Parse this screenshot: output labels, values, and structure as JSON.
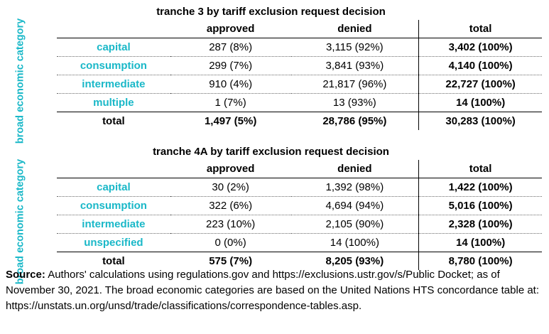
{
  "tables": [
    {
      "title": "tranche 3 by tariff exclusion request decision",
      "side_label": "broad economic category",
      "headers": [
        "approved",
        "denied",
        "total"
      ],
      "rows": [
        {
          "label": "capital",
          "approved": "287 (8%)",
          "denied": "3,115 (92%)",
          "total": "3,402 (100%)"
        },
        {
          "label": "consumption",
          "approved": "299 (7%)",
          "denied": "3,841 (93%)",
          "total": "4,140 (100%)"
        },
        {
          "label": "intermediate",
          "approved": "910 (4%)",
          "denied": "21,817 (96%)",
          "total": "22,727 (100%)"
        },
        {
          "label": "multiple",
          "approved": "1 (7%)",
          "denied": "13 (93%)",
          "total": "14 (100%)"
        }
      ],
      "total_row": {
        "label": "total",
        "approved": "1,497 (5%)",
        "denied": "28,786 (95%)",
        "total": "30,283 (100%)"
      }
    },
    {
      "title": "tranche 4A by tariff exclusion request decision",
      "side_label": "broad economic category",
      "headers": [
        "approved",
        "denied",
        "total"
      ],
      "rows": [
        {
          "label": "capital",
          "approved": "30 (2%)",
          "denied": "1,392 (98%)",
          "total": "1,422 (100%)"
        },
        {
          "label": "consumption",
          "approved": "322 (6%)",
          "denied": "4,694 (94%)",
          "total": "5,016 (100%)"
        },
        {
          "label": "intermediate",
          "approved": "223 (10%)",
          "denied": "2,105 (90%)",
          "total": "2,328 (100%)"
        },
        {
          "label": "unspecified",
          "approved": "0 (0%)",
          "denied": "14 (100%)",
          "total": "14 (100%)"
        }
      ],
      "total_row": {
        "label": "total",
        "approved": "575 (7%)",
        "denied": "8,205 (93%)",
        "total": "8,780 (100%)"
      }
    }
  ],
  "source": {
    "prefix": "Source:",
    "text": "Authors' calculations using regulations.gov and https://exclusions.ustr.gov/s/Public Docket; as of November 30, 2021. The broad economic categories are based on the United Nations HTS concordance table at: https://unstats.un.org/unsd/trade/classifications/correspondence-tables.asp."
  },
  "colors": {
    "accent": "#1ab8c8",
    "text": "#000000"
  }
}
